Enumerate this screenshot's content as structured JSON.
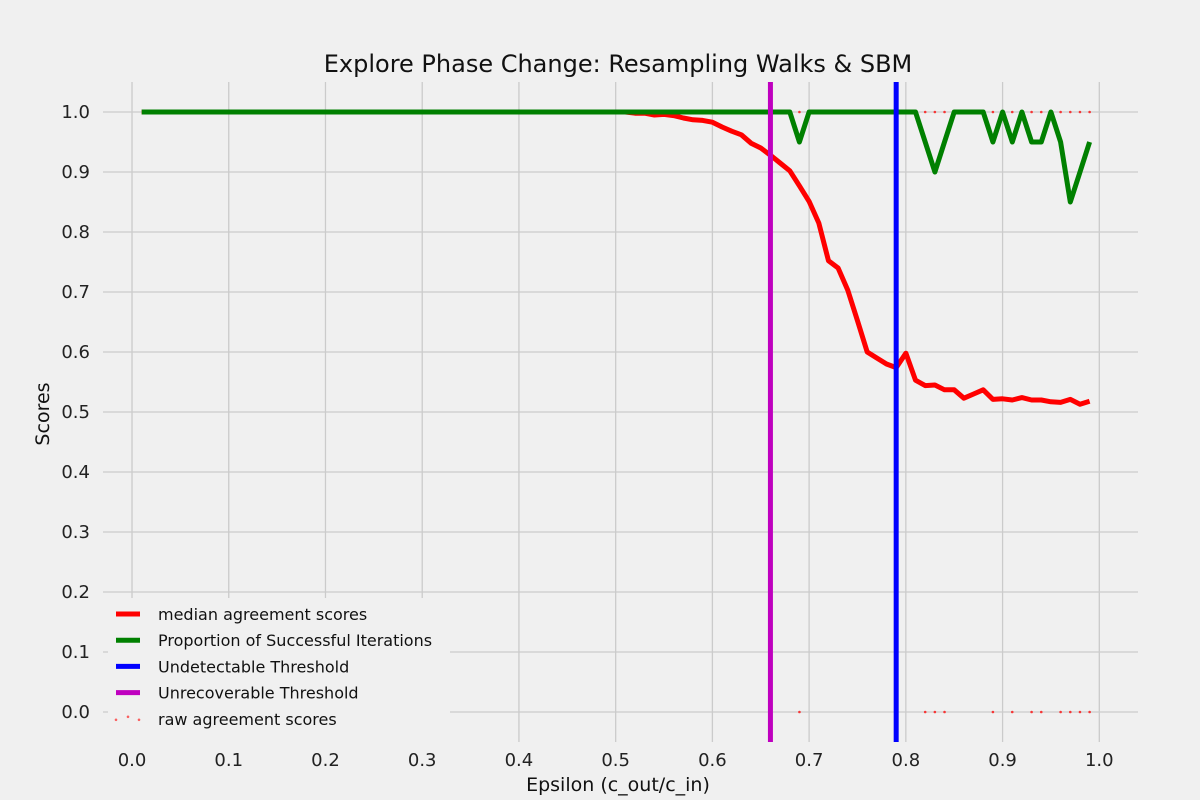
{
  "chart_data": {
    "type": "line",
    "title": "Explore Phase Change: Resampling Walks & SBM",
    "xlabel": "Epsilon (c_out/c_in)",
    "ylabel": "Scores",
    "xlim": [
      -0.03,
      1.04
    ],
    "ylim": [
      -0.05,
      1.05
    ],
    "x_ticks": [
      "0.0",
      "0.1",
      "0.2",
      "0.3",
      "0.4",
      "0.5",
      "0.6",
      "0.7",
      "0.8",
      "0.9",
      "1.0"
    ],
    "y_ticks": [
      "0.0",
      "0.1",
      "0.2",
      "0.3",
      "0.4",
      "0.5",
      "0.6",
      "0.7",
      "0.8",
      "0.9",
      "1.0"
    ],
    "grid": true,
    "legend_position": "lower-left",
    "series": [
      {
        "name": "median agreement scores",
        "color": "#ff0000",
        "style": "line",
        "x": [
          0.01,
          0.05,
          0.1,
          0.2,
          0.3,
          0.4,
          0.5,
          0.51,
          0.52,
          0.53,
          0.54,
          0.55,
          0.56,
          0.57,
          0.58,
          0.59,
          0.6,
          0.61,
          0.62,
          0.63,
          0.64,
          0.65,
          0.66,
          0.67,
          0.68,
          0.69,
          0.7,
          0.71,
          0.72,
          0.73,
          0.74,
          0.75,
          0.76,
          0.77,
          0.78,
          0.79,
          0.8,
          0.81,
          0.82,
          0.83,
          0.84,
          0.85,
          0.86,
          0.87,
          0.88,
          0.89,
          0.9,
          0.91,
          0.92,
          0.93,
          0.94,
          0.95,
          0.96,
          0.97,
          0.98,
          0.99
        ],
        "y": [
          1.0,
          1.0,
          1.0,
          1.0,
          1.0,
          1.0,
          1.0,
          1.0,
          0.998,
          0.998,
          0.995,
          0.996,
          0.994,
          0.99,
          0.987,
          0.986,
          0.983,
          0.975,
          0.968,
          0.962,
          0.948,
          0.94,
          0.928,
          0.915,
          0.902,
          0.877,
          0.851,
          0.815,
          0.752,
          0.74,
          0.703,
          0.652,
          0.6,
          0.59,
          0.58,
          0.574,
          0.598,
          0.553,
          0.544,
          0.545,
          0.537,
          0.537,
          0.523,
          0.53,
          0.537,
          0.521,
          0.522,
          0.52,
          0.524,
          0.52,
          0.52,
          0.517,
          0.516,
          0.521,
          0.513,
          0.518
        ]
      },
      {
        "name": "Proportion of Successful Iterations",
        "color": "#008000",
        "style": "line",
        "x": [
          0.01,
          0.1,
          0.2,
          0.3,
          0.4,
          0.5,
          0.6,
          0.67,
          0.68,
          0.69,
          0.7,
          0.71,
          0.72,
          0.73,
          0.74,
          0.75,
          0.76,
          0.77,
          0.78,
          0.79,
          0.8,
          0.81,
          0.82,
          0.83,
          0.84,
          0.85,
          0.86,
          0.87,
          0.88,
          0.89,
          0.9,
          0.91,
          0.92,
          0.93,
          0.94,
          0.95,
          0.96,
          0.97,
          0.98,
          0.99
        ],
        "y": [
          1.0,
          1.0,
          1.0,
          1.0,
          1.0,
          1.0,
          1.0,
          1.0,
          1.0,
          0.95,
          1.0,
          1.0,
          1.0,
          1.0,
          1.0,
          1.0,
          1.0,
          1.0,
          1.0,
          1.0,
          1.0,
          1.0,
          0.95,
          0.9,
          0.95,
          1.0,
          1.0,
          1.0,
          1.0,
          0.95,
          1.0,
          0.95,
          1.0,
          0.95,
          0.95,
          1.0,
          0.95,
          0.85,
          0.9,
          0.95
        ]
      },
      {
        "name": "Undetectable Threshold",
        "color": "#0000ff",
        "style": "vline",
        "x": 0.79
      },
      {
        "name": "Unrecoverable Threshold",
        "color": "#bf00bf",
        "style": "vline",
        "x": 0.66
      },
      {
        "name": "raw agreement scores",
        "color": "#ff0000",
        "style": "scatter",
        "points": [
          [
            0.69,
            1.0
          ],
          [
            0.82,
            1.0
          ],
          [
            0.83,
            1.0
          ],
          [
            0.84,
            1.0
          ],
          [
            0.89,
            1.0
          ],
          [
            0.91,
            1.0
          ],
          [
            0.93,
            1.0
          ],
          [
            0.94,
            1.0
          ],
          [
            0.96,
            1.0
          ],
          [
            0.97,
            1.0
          ],
          [
            0.98,
            1.0
          ],
          [
            0.99,
            1.0
          ],
          [
            0.69,
            0.0
          ],
          [
            0.82,
            0.0
          ],
          [
            0.83,
            0.0
          ],
          [
            0.84,
            0.0
          ],
          [
            0.89,
            0.0
          ],
          [
            0.91,
            0.0
          ],
          [
            0.93,
            0.0
          ],
          [
            0.94,
            0.0
          ],
          [
            0.96,
            0.0
          ],
          [
            0.97,
            0.0
          ],
          [
            0.98,
            0.0
          ],
          [
            0.99,
            0.0
          ]
        ]
      }
    ]
  }
}
